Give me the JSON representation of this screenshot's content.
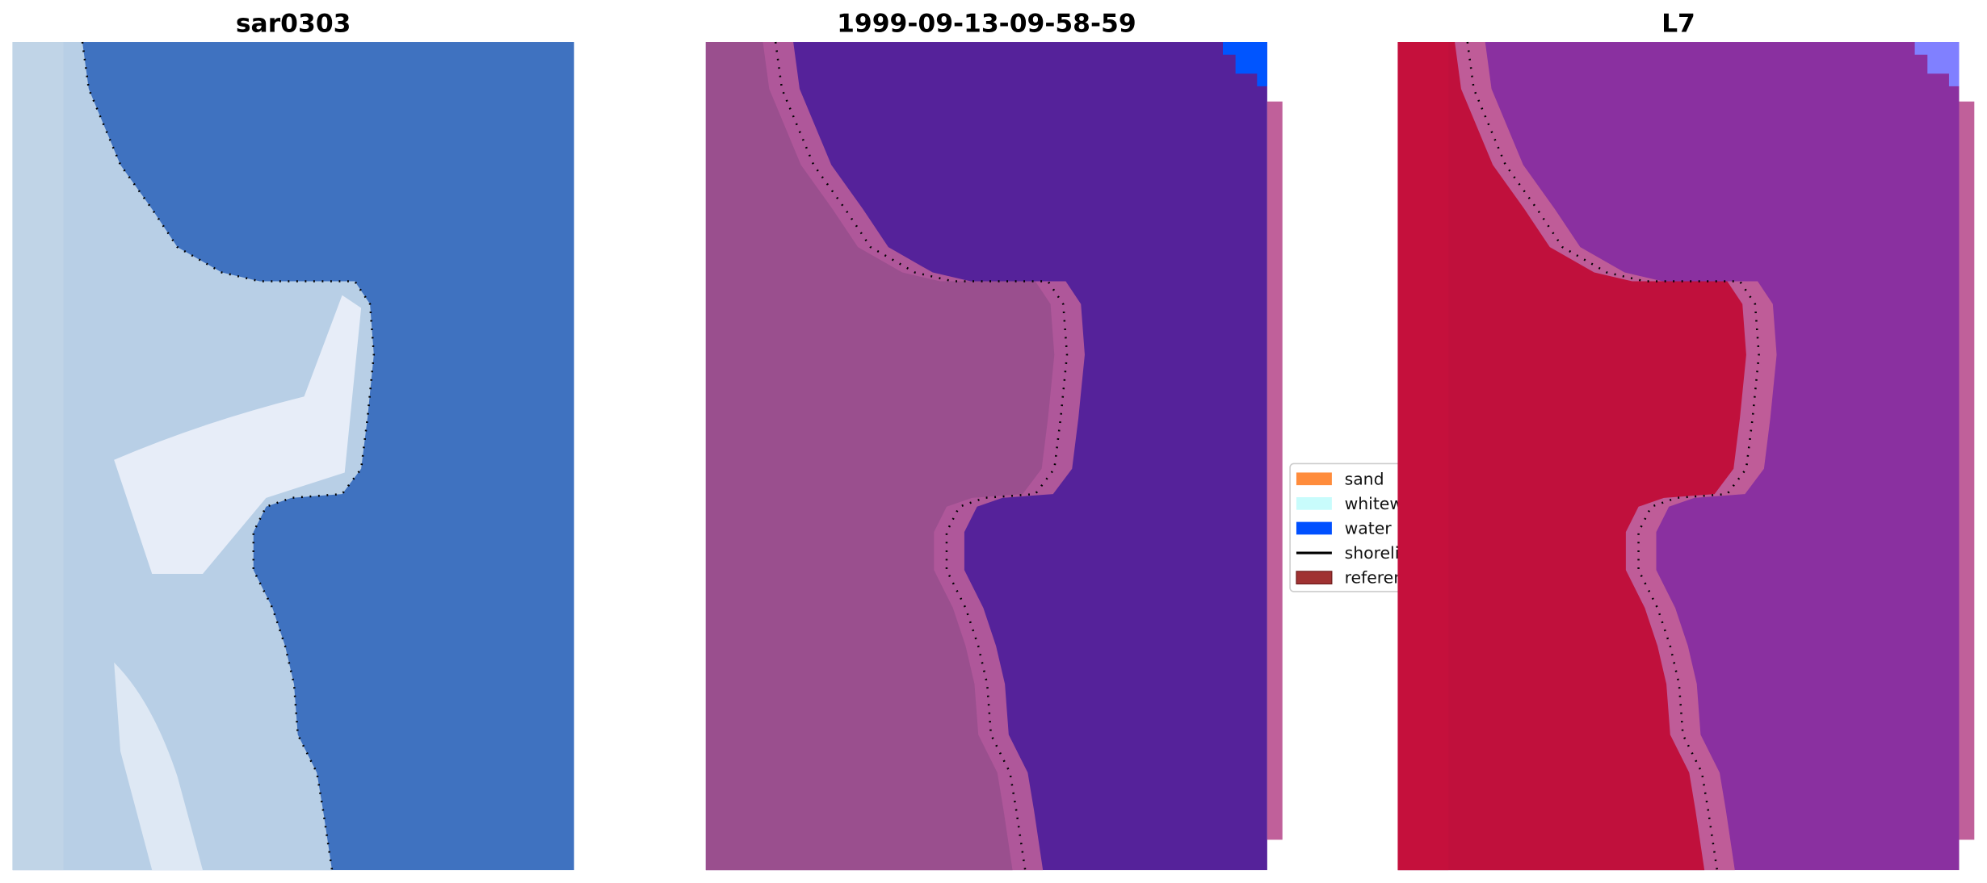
{
  "panels": [
    {
      "title": "sar0303",
      "land_color": "#b8cfe6",
      "water_color": "#3f72c0",
      "highlight_color": "#eef2fa"
    },
    {
      "title": "1999-09-13-09-58-59",
      "land_color": "#9a4f8e",
      "water_color": "#55229a",
      "highlight_color": "#c0609a",
      "corner_color": "#0055ff"
    },
    {
      "title": "L7",
      "land_color": "#c0103c",
      "water_color": "#8a30a0",
      "highlight_color": "#c86496",
      "corner_color": "#8080ff"
    }
  ],
  "legend": {
    "items": [
      {
        "label": "sand",
        "color": "#ff8c3c",
        "kind": "patch"
      },
      {
        "label": "whitewater",
        "color": "#c8fcfc",
        "kind": "patch"
      },
      {
        "label": "water",
        "color": "#0050ff",
        "kind": "patch"
      },
      {
        "label": "shoreline",
        "color": "#000000",
        "kind": "line"
      },
      {
        "label": "reference shoreline",
        "color": "#a03232",
        "kind": "patch"
      }
    ]
  }
}
